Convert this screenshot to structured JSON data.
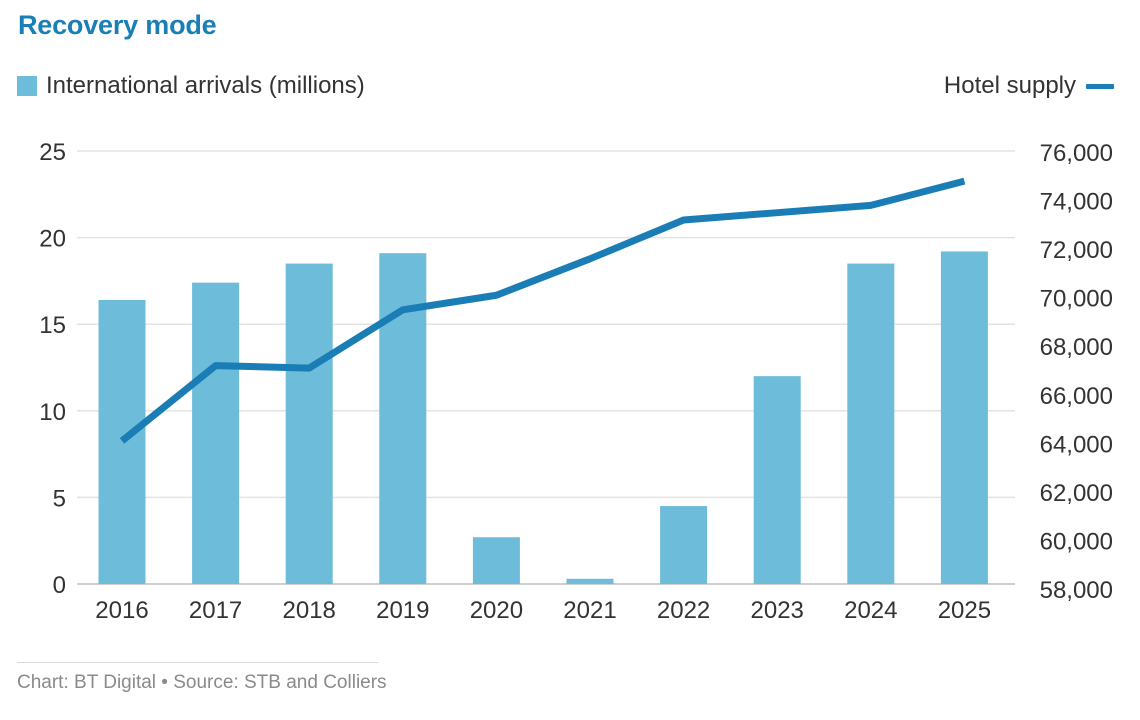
{
  "chart_data": {
    "type": "bar+line",
    "title": "Recovery mode",
    "categories": [
      "2016",
      "2017",
      "2018",
      "2019",
      "2020",
      "2021",
      "2022",
      "2023",
      "2024",
      "2025"
    ],
    "series": [
      {
        "name": "International arrivals (millions)",
        "type": "bar",
        "axis": "left",
        "color": "#6dbcd9",
        "values": [
          16.4,
          17.4,
          18.5,
          19.1,
          2.7,
          0.3,
          4.5,
          12.0,
          18.5,
          19.2
        ]
      },
      {
        "name": "Hotel supply",
        "type": "line",
        "axis": "right",
        "color": "#1a7db5",
        "values": [
          64100,
          67200,
          67100,
          69500,
          70100,
          71600,
          73200,
          73500,
          73800,
          74800
        ]
      }
    ],
    "y_left": {
      "range": [
        0,
        25
      ],
      "ticks": [
        0,
        5,
        10,
        15,
        20,
        25
      ],
      "tick_labels": [
        "0",
        "5",
        "10",
        "15",
        "20",
        "25"
      ]
    },
    "y_right": {
      "range": [
        58000,
        76000
      ],
      "ticks": [
        58000,
        60000,
        62000,
        64000,
        66000,
        68000,
        70000,
        72000,
        74000,
        76000
      ],
      "tick_labels": [
        "58,000",
        "60,000",
        "62,000",
        "64,000",
        "66,000",
        "68,000",
        "70,000",
        "72,000",
        "74,000",
        "76,000"
      ]
    },
    "xlabel": "",
    "ylabel_left": "",
    "ylabel_right": "",
    "grid": true,
    "legend": {
      "left": "International arrivals (millions)",
      "right": "Hotel supply",
      "placement": "top"
    },
    "footer": "Chart: BT Digital • Source: STB and Colliers"
  }
}
